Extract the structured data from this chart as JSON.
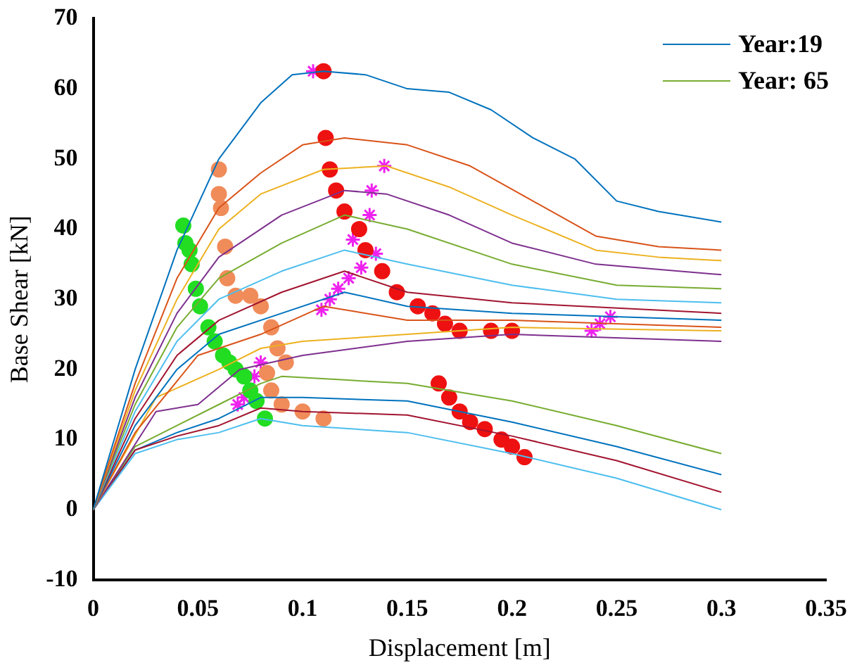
{
  "chart_data": {
    "type": "line",
    "xlabel": "Displacement [m]",
    "ylabel": "Base Shear [kN]",
    "xlim": [
      0,
      0.35
    ],
    "ylim": [
      -10,
      70
    ],
    "xticks": [
      0,
      0.05,
      0.1,
      0.15,
      0.2,
      0.25,
      0.3,
      0.35
    ],
    "yticks": [
      -10,
      0,
      10,
      20,
      30,
      40,
      50,
      60,
      70
    ],
    "grid": false,
    "legend": "top right",
    "series": [
      {
        "name": "Year:19",
        "color": "#0072bd",
        "x": [
          0,
          0.02,
          0.04,
          0.06,
          0.08,
          0.095,
          0.11,
          0.13,
          0.15,
          0.17,
          0.19,
          0.21,
          0.23,
          0.25,
          0.27,
          0.3
        ],
        "values": [
          0,
          20,
          37,
          50,
          58,
          62,
          62.5,
          62,
          60,
          59.5,
          57,
          53,
          50,
          44,
          42.5,
          41
        ]
      },
      {
        "color": "#d95319",
        "x": [
          0,
          0.02,
          0.04,
          0.06,
          0.08,
          0.1,
          0.12,
          0.15,
          0.18,
          0.21,
          0.24,
          0.27,
          0.3
        ],
        "values": [
          0,
          18,
          33,
          43,
          48,
          52,
          53,
          52,
          49,
          44,
          39,
          37.5,
          37
        ]
      },
      {
        "color": "#edb120",
        "x": [
          0,
          0.02,
          0.04,
          0.06,
          0.08,
          0.11,
          0.14,
          0.17,
          0.2,
          0.24,
          0.27,
          0.3
        ],
        "values": [
          0,
          17,
          30,
          40,
          45,
          48.5,
          49,
          46,
          42,
          37,
          36,
          35.5
        ]
      },
      {
        "color": "#7e2f8e",
        "x": [
          0,
          0.02,
          0.04,
          0.06,
          0.09,
          0.12,
          0.14,
          0.17,
          0.2,
          0.24,
          0.3
        ],
        "values": [
          0,
          16,
          28,
          36,
          42,
          45.5,
          45,
          42,
          38,
          35,
          33.5
        ]
      },
      {
        "color": "#77ac30",
        "x": [
          0,
          0.02,
          0.04,
          0.06,
          0.09,
          0.12,
          0.15,
          0.2,
          0.25,
          0.3
        ],
        "values": [
          0,
          15,
          26,
          33,
          38,
          42,
          40,
          35,
          32,
          31.5
        ]
      },
      {
        "color": "#4dbeee",
        "x": [
          0,
          0.02,
          0.04,
          0.06,
          0.09,
          0.12,
          0.15,
          0.2,
          0.25,
          0.3
        ],
        "values": [
          0,
          14,
          24,
          30,
          34,
          37,
          35,
          32,
          30,
          29.5
        ]
      },
      {
        "color": "#a2142f",
        "x": [
          0,
          0.02,
          0.04,
          0.06,
          0.09,
          0.12,
          0.15,
          0.2,
          0.3
        ],
        "values": [
          0,
          13,
          22,
          27,
          31,
          34,
          31,
          29.5,
          28
        ]
      },
      {
        "color": "#0072bd",
        "x": [
          0,
          0.02,
          0.04,
          0.06,
          0.09,
          0.12,
          0.15,
          0.2,
          0.3
        ],
        "values": [
          0,
          12,
          20,
          25,
          28,
          31,
          29,
          28,
          27
        ]
      },
      {
        "color": "#d95319",
        "x": [
          0,
          0.02,
          0.05,
          0.08,
          0.11,
          0.15,
          0.2,
          0.3
        ],
        "values": [
          0,
          11,
          22,
          25,
          29,
          27,
          27,
          26
        ]
      },
      {
        "color": "#edb120",
        "x": [
          0,
          0.03,
          0.06,
          0.08,
          0.1,
          0.15,
          0.2,
          0.3
        ],
        "values": [
          0,
          16,
          20,
          23,
          24,
          25,
          26,
          25.5
        ]
      },
      {
        "color": "#7e2f8e",
        "x": [
          0,
          0.03,
          0.05,
          0.07,
          0.1,
          0.15,
          0.2,
          0.3
        ],
        "values": [
          0,
          14,
          15,
          20,
          22,
          24,
          25,
          24
        ]
      },
      {
        "color": "#4dbeee",
        "x": [
          0,
          0.02,
          0.04,
          0.06,
          0.08,
          0.1,
          0.15,
          0.2,
          0.25,
          0.3
        ],
        "values": [
          0,
          8,
          10,
          11,
          13,
          12,
          11,
          8,
          4.5,
          0
        ]
      },
      {
        "color": "#a2142f",
        "x": [
          0,
          0.02,
          0.04,
          0.06,
          0.08,
          0.1,
          0.15,
          0.2,
          0.25,
          0.3
        ],
        "values": [
          0,
          8.5,
          10.5,
          12,
          14.5,
          14,
          13.5,
          10.5,
          7,
          2.5
        ]
      },
      {
        "color": "#0072bd",
        "x": [
          0,
          0.02,
          0.04,
          0.06,
          0.08,
          0.1,
          0.15,
          0.2,
          0.25,
          0.3
        ],
        "values": [
          0,
          8.5,
          11,
          13,
          16,
          16,
          15.5,
          12.5,
          9,
          5
        ]
      },
      {
        "name": "Year: 65",
        "color": "#77ac30",
        "x": [
          0,
          0.02,
          0.04,
          0.06,
          0.08,
          0.09,
          0.12,
          0.15,
          0.2,
          0.25,
          0.3
        ],
        "values": [
          0,
          9,
          12,
          15,
          18,
          19,
          18.5,
          18,
          15.5,
          12,
          8
        ]
      },
      {
        "type": "scatter",
        "marker": "circle",
        "color": "#22dd22",
        "x": [
          0.043,
          0.044,
          0.046,
          0.047,
          0.049,
          0.051,
          0.055,
          0.058,
          0.062,
          0.065,
          0.068,
          0.072,
          0.075,
          0.078,
          0.082
        ],
        "values": [
          40.5,
          38,
          37,
          35,
          31.5,
          29,
          26,
          24,
          22,
          21,
          20,
          19,
          17,
          15.5,
          13
        ]
      },
      {
        "type": "scatter",
        "marker": "circle",
        "color": "#f08c5a",
        "x": [
          0.06,
          0.06,
          0.061,
          0.063,
          0.064,
          0.068,
          0.075,
          0.08,
          0.085,
          0.088,
          0.092,
          0.083,
          0.085,
          0.09,
          0.1,
          0.11
        ],
        "values": [
          48.5,
          45,
          43,
          37.5,
          33,
          30.5,
          30.5,
          29,
          26,
          23,
          21,
          19.5,
          17,
          15,
          14,
          13
        ]
      },
      {
        "type": "scatter",
        "marker": "circle",
        "color": "#ee1111",
        "x": [
          0.11,
          0.111,
          0.113,
          0.116,
          0.12,
          0.127,
          0.13,
          0.138,
          0.145,
          0.155,
          0.162,
          0.168,
          0.175,
          0.19,
          0.2,
          0.165,
          0.17,
          0.175,
          0.18,
          0.187,
          0.195,
          0.2,
          0.206
        ],
        "values": [
          62.5,
          53,
          48.5,
          45.5,
          42.5,
          40,
          37,
          34,
          31,
          29,
          28,
          26.5,
          25.5,
          25.5,
          25.5,
          18,
          16,
          14,
          12.5,
          11.5,
          10,
          9,
          7.5
        ]
      },
      {
        "type": "scatter",
        "marker": "cross",
        "color": "#ee22ee",
        "x": [
          0.105,
          0.139,
          0.133,
          0.132,
          0.124,
          0.135,
          0.128,
          0.122,
          0.117,
          0.113,
          0.109,
          0.08,
          0.077,
          0.072,
          0.069,
          0.238,
          0.242,
          0.247
        ],
        "values": [
          62.5,
          49,
          45.5,
          42,
          38.5,
          36.5,
          34.5,
          33,
          31.5,
          30,
          28.5,
          21,
          19,
          16,
          15,
          25.5,
          26.5,
          27.5
        ]
      }
    ]
  }
}
